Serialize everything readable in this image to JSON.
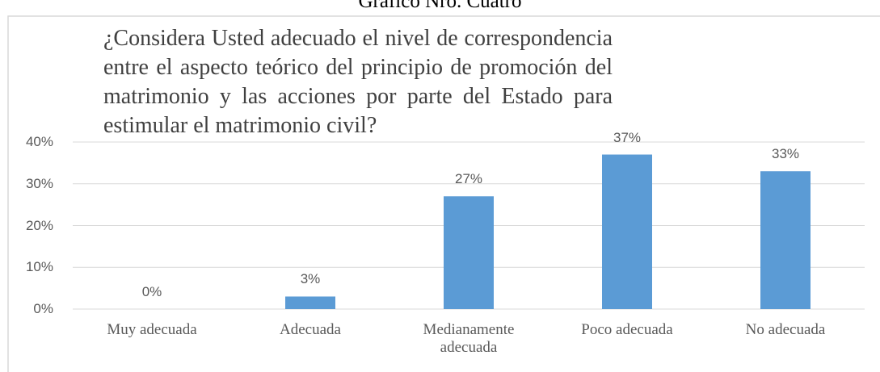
{
  "chart_data": {
    "type": "bar",
    "header": "Gráfico Nro. Cuatro",
    "title": "¿Considera Usted adecuado el nivel de correspondencia entre el aspecto teórico del principio de promoción del matrimonio y las acciones por parte del Estado para estimular el matrimonio civil?",
    "categories": [
      "Muy adecuada",
      "Adecuada",
      "Medianamente adecuada",
      "Poco adecuada",
      "No adecuada"
    ],
    "values": [
      0,
      3,
      27,
      37,
      33
    ],
    "value_labels": [
      "0%",
      "3%",
      "27%",
      "37%",
      "33%"
    ],
    "color": "#5b9bd5",
    "ylim": [
      0,
      40
    ],
    "yticks": [
      {
        "value": 0,
        "label": "0%"
      },
      {
        "value": 10,
        "label": "10%"
      },
      {
        "value": 20,
        "label": "20%"
      },
      {
        "value": 30,
        "label": "30%"
      },
      {
        "value": 40,
        "label": "40%"
      }
    ],
    "grid": true
  }
}
